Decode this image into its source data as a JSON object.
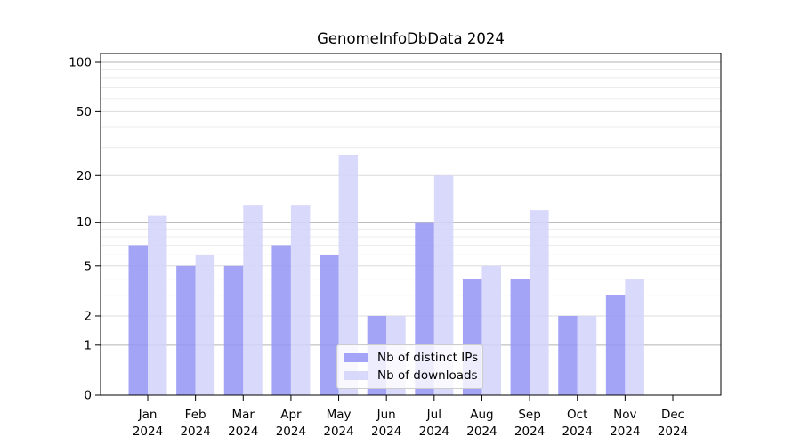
{
  "chart_data": {
    "type": "bar",
    "title": "GenomeInfoDbData 2024",
    "categories": [
      "Jan",
      "Feb",
      "Mar",
      "Apr",
      "May",
      "Jun",
      "Jul",
      "Aug",
      "Sep",
      "Oct",
      "Nov",
      "Dec"
    ],
    "x_tick_year_line": "2024",
    "series": [
      {
        "name": "Nb of distinct IPs",
        "color": "rgba(148,148,246,0.85)",
        "values": [
          7,
          5,
          5,
          7,
          6,
          2,
          10,
          4,
          4,
          2,
          3,
          0
        ]
      },
      {
        "name": "Nb of downloads",
        "color": "rgba(210,210,250,0.85)",
        "values": [
          11,
          6,
          13,
          13,
          27,
          2,
          20,
          5,
          12,
          2,
          4,
          0
        ]
      }
    ],
    "y_scale": "log1p",
    "ylim": [
      0,
      100
    ],
    "y_ticks": [
      100,
      50,
      20,
      10,
      5,
      2,
      1,
      0
    ],
    "y_tick_labels": [
      "100",
      "50",
      "20",
      "10",
      "5",
      "2",
      "1",
      "0"
    ],
    "gridlines": {
      "strong": [
        1,
        10,
        100
      ],
      "medium": [
        2,
        5,
        20,
        50
      ],
      "faint": [
        3,
        4,
        6,
        7,
        8,
        9,
        30,
        40,
        60,
        70,
        80,
        90
      ]
    },
    "grid": true,
    "legend_position": "lower-center",
    "axis_color": "#000000",
    "tick_label_color": "#000000",
    "grid_colors": {
      "strong": "#b3b3b3",
      "medium": "#dcdcdc",
      "faint": "#ececec"
    }
  }
}
